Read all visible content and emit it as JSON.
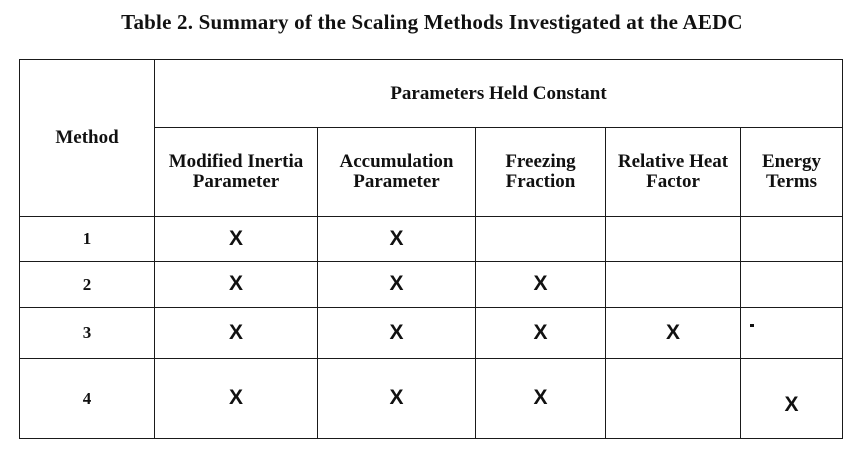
{
  "caption": "Table 2.  Summary of the Scaling Methods Investigated at the AEDC",
  "table": {
    "method_header": "Method",
    "group_header": "Parameters Held Constant",
    "columns": [
      "Modified Inertia Parameter",
      "Accumulation Parameter",
      "Freezing Fraction",
      "Relative Heat Factor",
      "Energy Terms"
    ],
    "mark_symbol": "X",
    "rows": [
      {
        "method": "1",
        "marks": [
          "X",
          "X",
          "",
          "",
          ""
        ]
      },
      {
        "method": "2",
        "marks": [
          "X",
          "X",
          "X",
          "",
          ""
        ]
      },
      {
        "method": "3",
        "marks": [
          "X",
          "X",
          "X",
          "X",
          ""
        ]
      },
      {
        "method": "4",
        "marks": [
          "X",
          "X",
          "X",
          "",
          "X"
        ]
      }
    ]
  }
}
